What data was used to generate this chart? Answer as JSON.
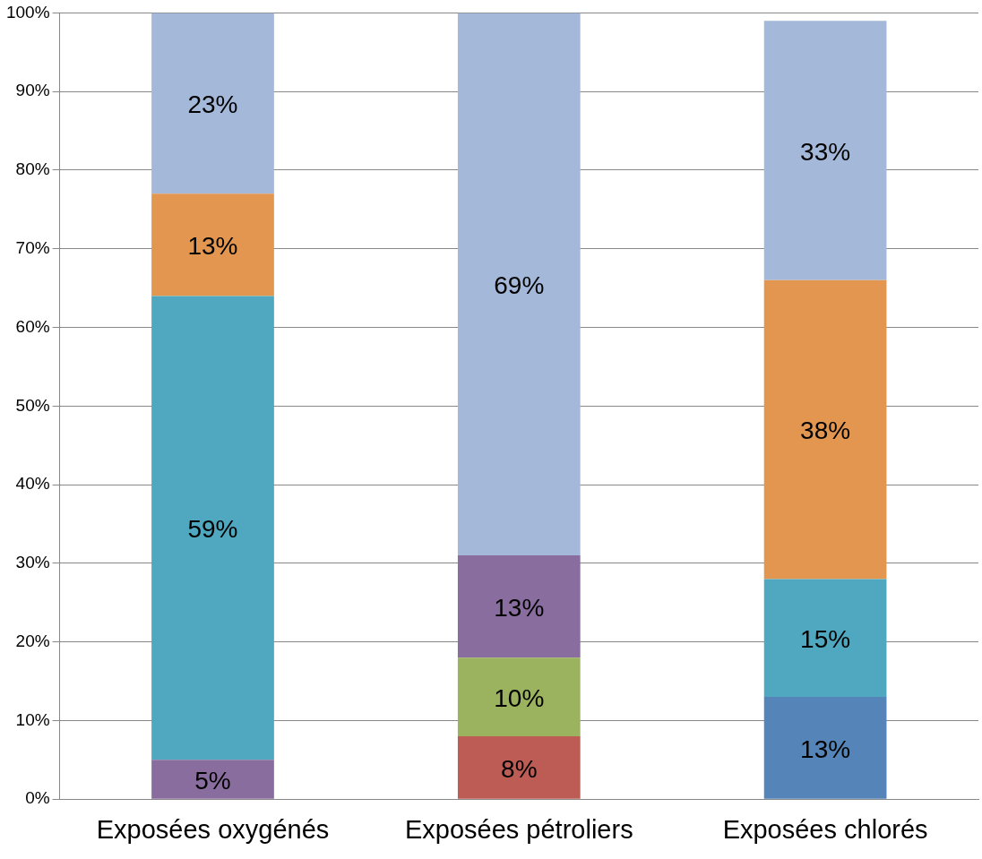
{
  "chart_data": {
    "type": "bar",
    "stacked": true,
    "categories": [
      "Exposées oxygénés",
      "Exposées pétroliers",
      "Exposées chlorés"
    ],
    "series": [
      {
        "color": "#5584b8",
        "values": [
          null,
          null,
          13
        ],
        "value_labels": [
          null,
          null,
          "13%"
        ]
      },
      {
        "color": "#bc5c54",
        "values": [
          null,
          8,
          null
        ],
        "value_labels": [
          null,
          "8%",
          null
        ]
      },
      {
        "color": "#9bb35e",
        "values": [
          null,
          10,
          null
        ],
        "value_labels": [
          null,
          "10%",
          null
        ]
      },
      {
        "color": "#8a6d9f",
        "values": [
          5,
          13,
          null
        ],
        "value_labels": [
          "5%",
          "13%",
          null
        ]
      },
      {
        "color": "#4fa8bf",
        "values": [
          59,
          null,
          15
        ],
        "value_labels": [
          "59%",
          null,
          "15%"
        ]
      },
      {
        "color": "#e3964f",
        "values": [
          13,
          null,
          38
        ],
        "value_labels": [
          "13%",
          null,
          "38%"
        ]
      },
      {
        "color": "#a4b8da",
        "values": [
          23,
          69,
          33
        ],
        "value_labels": [
          "23%",
          "69%",
          "33%"
        ]
      }
    ],
    "ylim": [
      0,
      100
    ],
    "yticks": [
      {
        "value": 0,
        "label": "0%"
      },
      {
        "value": 10,
        "label": "10%"
      },
      {
        "value": 20,
        "label": "20%"
      },
      {
        "value": 30,
        "label": "30%"
      },
      {
        "value": 40,
        "label": "40%"
      },
      {
        "value": 50,
        "label": "50%"
      },
      {
        "value": 60,
        "label": "60%"
      },
      {
        "value": 70,
        "label": "70%"
      },
      {
        "value": 80,
        "label": "80%"
      },
      {
        "value": 90,
        "label": "90%"
      },
      {
        "value": 100,
        "label": "100%"
      }
    ],
    "grid": "y",
    "legend": false
  }
}
